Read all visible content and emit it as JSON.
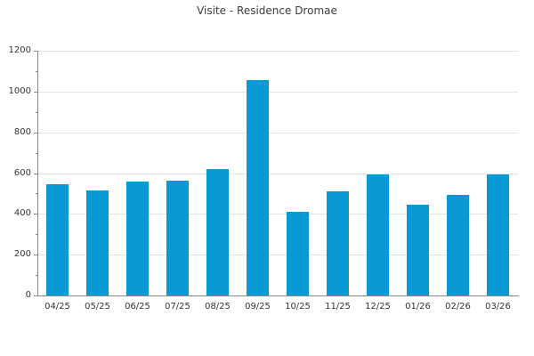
{
  "chart": {
    "title": "Visite - Residence Dromae"
  },
  "chart_data": {
    "type": "bar",
    "title": "Visite - Residence Dromae",
    "categories": [
      "04/25",
      "05/25",
      "06/25",
      "07/25",
      "08/25",
      "09/25",
      "10/25",
      "11/25",
      "12/25",
      "01/26",
      "02/26",
      "03/26"
    ],
    "values": [
      545,
      515,
      560,
      565,
      620,
      1055,
      410,
      510,
      595,
      445,
      495,
      595
    ],
    "xlabel": "",
    "ylabel": "",
    "ylim": [
      0,
      1200
    ],
    "ytick_step": 200,
    "ytick_minor_step": 100,
    "ytick_labels": [
      "0",
      "200",
      "400",
      "600",
      "800",
      "1000",
      "1200"
    ],
    "grid": "horizontal-major",
    "legend_position": "none",
    "bar_color": "#0999d5",
    "grid_color": "#e4e4e4",
    "axis_color": "#888888",
    "text_color": "#333333",
    "title_color": "#3c3c3c"
  }
}
